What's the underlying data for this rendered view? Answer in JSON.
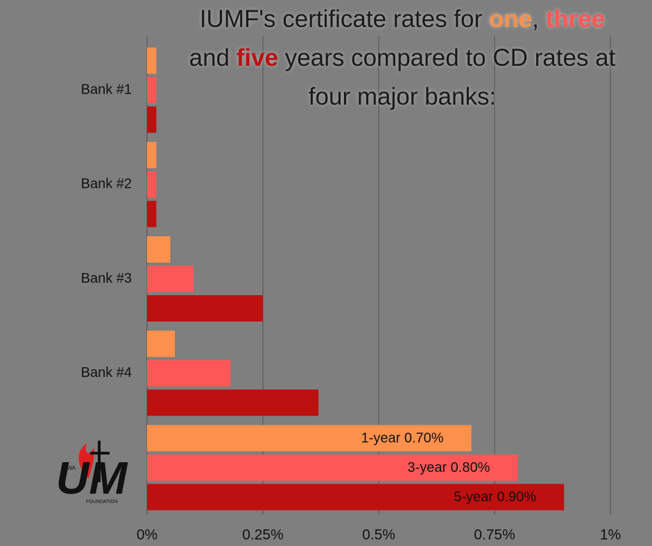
{
  "chart_data": {
    "type": "bar",
    "orientation": "horizontal",
    "title_segments": [
      {
        "text": "IUMF's certificate rates for ",
        "color": "#1a1a1a"
      },
      {
        "text": "one",
        "color": "#ff914d"
      },
      {
        "text": ", ",
        "color": "#1a1a1a"
      },
      {
        "text": "three",
        "color": "#ff5757"
      },
      {
        "text": " and ",
        "color": "#1a1a1a"
      },
      {
        "text": "five",
        "color": "#bd1010"
      },
      {
        "text": " years compared to CD rates at four major banks:",
        "color": "#1a1a1a"
      }
    ],
    "categories": [
      "Bank #1",
      "Bank #2",
      "Bank #3",
      "Bank #4",
      null
    ],
    "series": [
      {
        "color": "#ff914d",
        "values": [
          0.02,
          0.02,
          0.05,
          0.06,
          0.7
        ],
        "value_labels": [
          null,
          null,
          null,
          null,
          "1-year 0.70%"
        ]
      },
      {
        "color": "#ff5757",
        "values": [
          0.02,
          0.02,
          0.1,
          0.18,
          0.8
        ],
        "value_labels": [
          null,
          null,
          null,
          null,
          "3-year 0.80%"
        ]
      },
      {
        "color": "#bd1010",
        "values": [
          0.02,
          0.02,
          0.25,
          0.37,
          0.9
        ],
        "value_labels": [
          null,
          null,
          null,
          null,
          "5-year 0.90%"
        ]
      }
    ],
    "xlim": [
      0,
      1
    ],
    "xticks": [
      {
        "value": 0,
        "label": "0%"
      },
      {
        "value": 0.25,
        "label": "0.25%"
      },
      {
        "value": 0.5,
        "label": "0.5%"
      },
      {
        "value": 0.75,
        "label": "0.75%"
      },
      {
        "value": 1,
        "label": "1%"
      }
    ],
    "grid": true,
    "logo": {
      "top": "IOWA",
      "letters": "UM",
      "bottom": "FOUNDATION"
    }
  }
}
